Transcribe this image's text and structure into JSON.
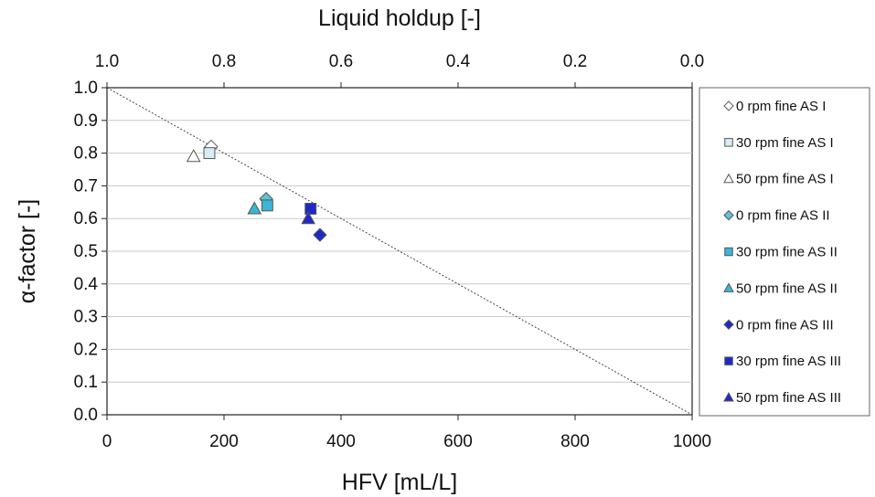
{
  "chart_data": {
    "type": "scatter",
    "xlabel": "HFV [mL/L]",
    "ylabel": "α-factor [-]",
    "x2label": "Liquid holdup [-]",
    "xlim": [
      0,
      1000
    ],
    "ylim": [
      0.0,
      1.0
    ],
    "x2lim": [
      1.0,
      0.0
    ],
    "x_ticks": [
      "0",
      "200",
      "400",
      "600",
      "800",
      "1000"
    ],
    "y_ticks": [
      "0.0",
      "0.1",
      "0.2",
      "0.3",
      "0.4",
      "0.5",
      "0.6",
      "0.7",
      "0.8",
      "0.9",
      "1.0"
    ],
    "x2_ticks": [
      "1.0",
      "0.8",
      "0.6",
      "0.4",
      "0.2",
      "0.0"
    ],
    "grid": "horizontal",
    "legend_position": "right",
    "reference_line": {
      "x": [
        0,
        1000
      ],
      "y": [
        1.0,
        0.0
      ],
      "style": "dotted"
    },
    "series": [
      {
        "name": "0 rpm fine AS I",
        "marker": "diamond",
        "color": "#ffffff",
        "points": [
          [
            178,
            0.82
          ]
        ]
      },
      {
        "name": "30 rpm fine AS I",
        "marker": "square",
        "color": "#d6eef3",
        "points": [
          [
            175,
            0.8
          ]
        ]
      },
      {
        "name": "50 rpm fine AS I",
        "marker": "triangle",
        "color": "#ffffff",
        "points": [
          [
            148,
            0.79
          ]
        ]
      },
      {
        "name": "0 rpm fine AS II",
        "marker": "diamond",
        "color": "#5cc4dd",
        "points": [
          [
            272,
            0.66
          ]
        ]
      },
      {
        "name": "30 rpm fine AS II",
        "marker": "square",
        "color": "#3ab6d6",
        "points": [
          [
            274,
            0.64
          ]
        ]
      },
      {
        "name": "50 rpm fine AS II",
        "marker": "triangle",
        "color": "#3ab6d6",
        "points": [
          [
            252,
            0.63
          ]
        ]
      },
      {
        "name": "0 rpm fine AS III",
        "marker": "diamond",
        "color": "#1d29c8",
        "points": [
          [
            364,
            0.55
          ]
        ]
      },
      {
        "name": "30 rpm fine AS III",
        "marker": "square",
        "color": "#1d29c8",
        "points": [
          [
            348,
            0.63
          ]
        ]
      },
      {
        "name": "50 rpm fine AS III",
        "marker": "triangle",
        "color": "#1d29c8",
        "points": [
          [
            344,
            0.6
          ]
        ]
      }
    ]
  }
}
